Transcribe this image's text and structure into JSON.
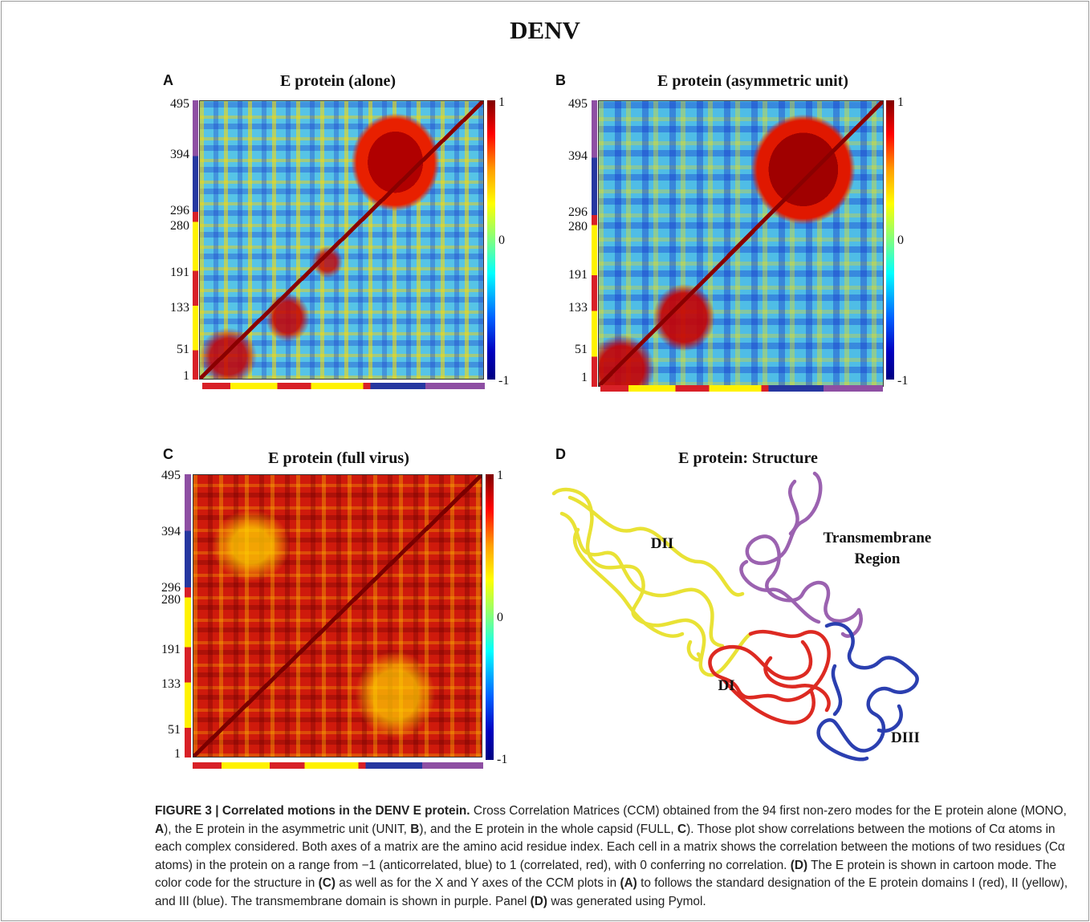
{
  "figure": {
    "title": "DENV",
    "panels": [
      {
        "letter": "A",
        "title": "E protein (alone)",
        "yticks": [
          "495",
          "394",
          "296",
          "280",
          "191",
          "133",
          "51",
          "1"
        ],
        "colorbar": [
          "1",
          "0",
          "-1"
        ]
      },
      {
        "letter": "B",
        "title": "E protein (asymmetric unit)",
        "yticks": [
          "495",
          "394",
          "296",
          "280",
          "191",
          "133",
          "51",
          "1"
        ],
        "colorbar": [
          "1",
          "0",
          "-1"
        ]
      },
      {
        "letter": "C",
        "title": "E protein (full virus)",
        "yticks": [
          "495",
          "394",
          "296",
          "280",
          "191",
          "133",
          "51",
          "1"
        ],
        "colorbar": [
          "1",
          "0",
          "-1"
        ]
      },
      {
        "letter": "D",
        "title": "E protein: Structure",
        "labels": [
          "DII",
          "Transmembrane",
          "Region",
          "DI",
          "DIII"
        ]
      }
    ]
  },
  "caption": {
    "runs": [
      {
        "text": "FIGURE 3 | Correlated motions in the DENV E protein.",
        "style": "bold"
      },
      {
        "text": " Cross Correlation Matrices (CCM) obtained from the 94 first non-zero modes for the E protein alone (MONO, ",
        "style": "normal"
      },
      {
        "text": "A",
        "style": "bold"
      },
      {
        "text": "), the E protein in the asymmetric unit (UNIT, ",
        "style": "normal"
      },
      {
        "text": "B",
        "style": "bold"
      },
      {
        "text": "), and the E protein in the whole capsid (FULL, ",
        "style": "normal"
      },
      {
        "text": "C",
        "style": "bold"
      },
      {
        "text": "). Those plot show correlations between the motions of Cα atoms in each complex considered. Both axes of a matrix are the amino acid residue index. Each cell in a matrix shows the correlation between the motions of two residues (Cα atoms) in the protein on a range from −1 (anticorrelated, blue) to 1 (correlated, red), with 0 conferring no correlation. ",
        "style": "normal"
      },
      {
        "text": "(D)",
        "style": "bold"
      },
      {
        "text": " The E protein is shown in cartoon mode. The color code for the structure in ",
        "style": "normal"
      },
      {
        "text": "(C)",
        "style": "bold"
      },
      {
        "text": " as well as for the X and Y axes of the CCM plots in ",
        "style": "normal"
      },
      {
        "text": "(A)",
        "style": "bold"
      },
      {
        "text": " to follows the standard designation of the E protein domains I (red), II (yellow), and III (blue). The transmembrane domain is shown in purple. Panel ",
        "style": "normal"
      },
      {
        "text": "(D)",
        "style": "bold"
      },
      {
        "text": " was generated using Pymol.",
        "style": "normal"
      }
    ]
  }
}
